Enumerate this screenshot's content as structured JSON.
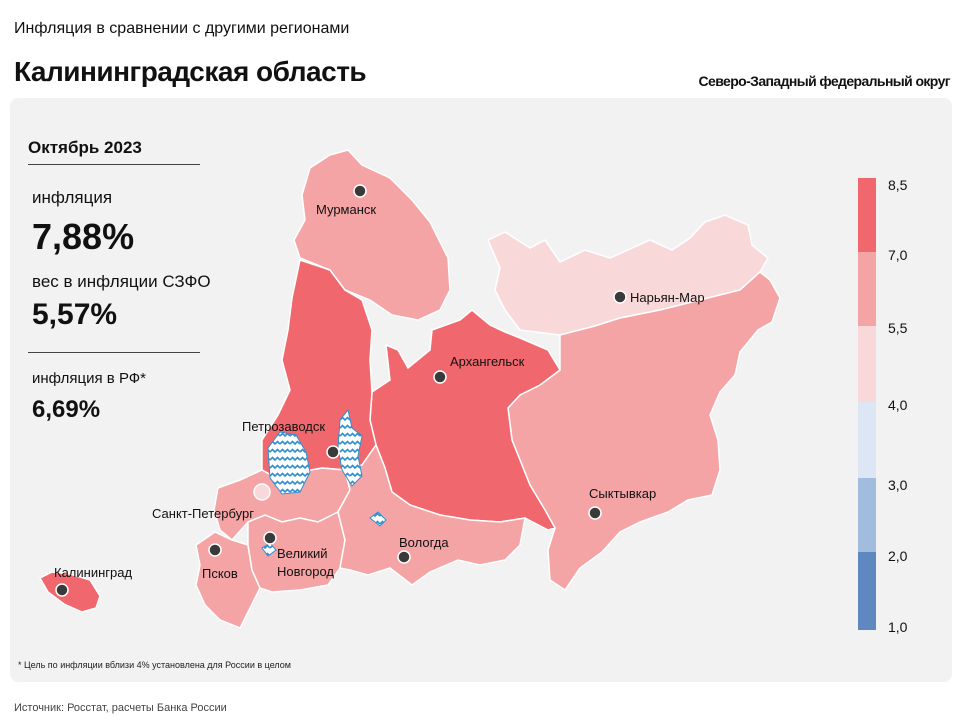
{
  "header": {
    "subtitle": "Инфляция в сравнении с другими регионами",
    "title": "Калининградская область",
    "district": "Северо-Западный федеральный округ"
  },
  "stats": {
    "period": "Октябрь 2023",
    "inflation_label": "инфляция",
    "inflation_value": "7,88%",
    "weight_label": "вес в инфляции  СЗФО",
    "weight_value": "5,57%",
    "russia_label": "инфляция  в РФ*",
    "russia_value": "6,69%"
  },
  "map": {
    "cities": [
      "Мурманск",
      "Нарьян-Мар",
      "Архангельск",
      "Петрозаводск",
      "Санкт-Петербург",
      "Сыктывкар",
      "Великий",
      "Новгород",
      "Вологда",
      "Псков",
      "Калининград"
    ],
    "legend": {
      "ticks": [
        "8,5",
        "7,0",
        "5,5",
        "4,0",
        "3,0",
        "2,0",
        "1,0"
      ],
      "colors": [
        "#f0686d",
        "#f5a4a6",
        "#f9d8da",
        "#dde6f4",
        "#a2bcdd",
        "#5f88c1"
      ]
    }
  },
  "footnote": "* Цель по инфляции вблизи 4% установлена для России в целом",
  "source": "Источник: Росстат, расчеты Банка России"
}
